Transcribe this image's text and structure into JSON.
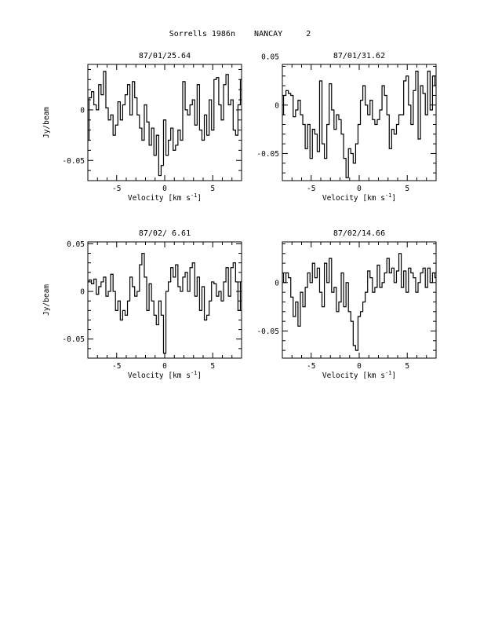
{
  "page": {
    "title": "Sorrells 1986n    NANCAY     2"
  },
  "chart_data": [
    {
      "type": "line",
      "step": true,
      "title": "87/01/25.64",
      "xlabel": "Velocity [km s",
      "xlabel_sup": "-1",
      "xlabel_end": "]",
      "ylabel": "Jy/beam",
      "xlim": [
        -8,
        8
      ],
      "ylim": [
        -0.07,
        0.045
      ],
      "xticks": [
        -5,
        0,
        5
      ],
      "xtick_labels": [
        "-5",
        "0",
        "5"
      ],
      "yticks": [
        0,
        -0.05
      ],
      "ytick_labels": [
        "0",
        "-0.05"
      ],
      "ytick_side": "left",
      "series": [
        {
          "x": [
            -8,
            -7.75,
            -7.5,
            -7.25,
            -7,
            -6.75,
            -6.5,
            -6.25,
            -6,
            -5.75,
            -5.5,
            -5.25,
            -5,
            -4.75,
            -4.5,
            -4.25,
            -4,
            -3.75,
            -3.5,
            -3.25,
            -3,
            -2.75,
            -2.5,
            -2.25,
            -2,
            -1.75,
            -1.5,
            -1.25,
            -1,
            -0.75,
            -0.5,
            -0.25,
            0,
            0.25,
            0.5,
            0.75,
            1,
            1.25,
            1.5,
            1.75,
            2,
            2.25,
            2.5,
            2.75,
            3,
            3.25,
            3.5,
            3.75,
            4,
            4.25,
            4.5,
            4.75,
            5,
            5.25,
            5.5,
            5.75,
            6,
            6.25,
            6.5,
            6.75,
            7,
            7.25,
            7.5,
            7.75,
            8
          ],
          "y": [
            -0.03,
            0.012,
            0.018,
            0.005,
            0.0,
            0.025,
            0.015,
            0.038,
            0.002,
            -0.01,
            -0.005,
            -0.025,
            -0.015,
            0.008,
            -0.01,
            0.005,
            0.015,
            0.025,
            -0.005,
            0.028,
            0.012,
            -0.005,
            -0.018,
            -0.03,
            0.005,
            -0.012,
            -0.035,
            -0.018,
            -0.045,
            -0.025,
            -0.065,
            -0.055,
            -0.01,
            -0.045,
            -0.03,
            -0.018,
            -0.04,
            -0.035,
            -0.02,
            -0.03,
            0.028,
            0.0,
            -0.005,
            0.005,
            0.01,
            -0.015,
            0.025,
            -0.02,
            -0.03,
            -0.005,
            -0.025,
            0.01,
            -0.02,
            0.03,
            0.032,
            0.005,
            -0.01,
            0.025,
            0.035,
            0.005,
            0.01,
            -0.02,
            -0.025,
            0.005,
            0.03
          ]
        }
      ]
    },
    {
      "type": "line",
      "step": true,
      "title": "87/01/31.62",
      "xlabel": "Velocity [km s",
      "xlabel_sup": "-1",
      "xlabel_end": "]",
      "ylabel": "",
      "xlim": [
        -8,
        8
      ],
      "ylim": [
        -0.078,
        0.042
      ],
      "xticks": [
        -5,
        0,
        5
      ],
      "xtick_labels": [
        "-5",
        "0",
        "5"
      ],
      "yticks": [
        0.05,
        0,
        -0.05
      ],
      "ytick_labels": [
        "0.05",
        "0",
        "-0.05"
      ],
      "ytick_side": "left",
      "series": [
        {
          "x": [
            -8,
            -7.75,
            -7.5,
            -7.25,
            -7,
            -6.75,
            -6.5,
            -6.25,
            -6,
            -5.75,
            -5.5,
            -5.25,
            -5,
            -4.75,
            -4.5,
            -4.25,
            -4,
            -3.75,
            -3.5,
            -3.25,
            -3,
            -2.75,
            -2.5,
            -2.25,
            -2,
            -1.75,
            -1.5,
            -1.25,
            -1,
            -0.75,
            -0.5,
            -0.25,
            0,
            0.25,
            0.5,
            0.75,
            1,
            1.25,
            1.5,
            1.75,
            2,
            2.25,
            2.5,
            2.75,
            3,
            3.25,
            3.5,
            3.75,
            4,
            4.25,
            4.5,
            4.75,
            5,
            5.25,
            5.5,
            5.75,
            6,
            6.25,
            6.5,
            6.75,
            7,
            7.25,
            7.5,
            7.75,
            8
          ],
          "y": [
            -0.01,
            0.01,
            0.015,
            0.012,
            0.01,
            -0.012,
            -0.005,
            0.005,
            -0.01,
            -0.02,
            -0.045,
            -0.02,
            -0.055,
            -0.025,
            -0.03,
            -0.048,
            0.025,
            -0.04,
            -0.055,
            -0.02,
            0.022,
            -0.005,
            -0.025,
            -0.01,
            -0.015,
            -0.03,
            -0.055,
            -0.075,
            -0.045,
            -0.05,
            -0.06,
            -0.04,
            -0.02,
            0.005,
            0.02,
            0.0,
            -0.01,
            0.005,
            -0.015,
            -0.02,
            -0.015,
            -0.005,
            0.02,
            0.01,
            -0.01,
            -0.045,
            -0.025,
            -0.03,
            -0.02,
            -0.01,
            -0.01,
            0.025,
            0.03,
            0.0,
            -0.02,
            0.015,
            0.035,
            -0.035,
            0.02,
            0.012,
            -0.01,
            0.035,
            -0.005,
            0.03,
            0.02
          ]
        }
      ]
    },
    {
      "type": "line",
      "step": true,
      "title": "87/02/ 6.61",
      "xlabel": "Velocity [km s",
      "xlabel_sup": "-1",
      "xlabel_end": "]",
      "ylabel": "Jy/beam",
      "xlim": [
        -8,
        8
      ],
      "ylim": [
        -0.07,
        0.052
      ],
      "xticks": [
        -5,
        0,
        5
      ],
      "xtick_labels": [
        "-5",
        "0",
        "5"
      ],
      "yticks": [
        0.05,
        0,
        -0.05
      ],
      "ytick_labels": [
        "0.05",
        "0",
        "-0.05"
      ],
      "ytick_side": "left",
      "series": [
        {
          "x": [
            -8,
            -7.75,
            -7.5,
            -7.25,
            -7,
            -6.75,
            -6.5,
            -6.25,
            -6,
            -5.75,
            -5.5,
            -5.25,
            -5,
            -4.75,
            -4.5,
            -4.25,
            -4,
            -3.75,
            -3.5,
            -3.25,
            -3,
            -2.75,
            -2.5,
            -2.25,
            -2,
            -1.75,
            -1.5,
            -1.25,
            -1,
            -0.75,
            -0.5,
            -0.25,
            0,
            0.25,
            0.5,
            0.75,
            1,
            1.25,
            1.5,
            1.75,
            2,
            2.25,
            2.5,
            2.75,
            3,
            3.25,
            3.5,
            3.75,
            4,
            4.25,
            4.5,
            4.75,
            5,
            5.25,
            5.5,
            5.75,
            6,
            6.25,
            6.5,
            6.75,
            7,
            7.25,
            7.5,
            7.75,
            8
          ],
          "y": [
            0.01,
            0.012,
            0.008,
            0.013,
            -0.003,
            0.005,
            0.01,
            0.015,
            -0.005,
            0.0,
            0.018,
            0.0,
            -0.02,
            -0.01,
            -0.03,
            -0.02,
            -0.025,
            -0.01,
            0.015,
            0.005,
            -0.005,
            0.0,
            0.028,
            0.04,
            0.015,
            -0.02,
            0.008,
            -0.01,
            -0.025,
            -0.035,
            -0.01,
            -0.025,
            -0.065,
            0.0,
            0.01,
            0.025,
            0.015,
            0.028,
            0.005,
            0.0,
            0.015,
            0.02,
            0.0,
            0.025,
            0.03,
            -0.005,
            0.015,
            -0.02,
            0.005,
            -0.03,
            -0.025,
            -0.01,
            0.01,
            0.008,
            -0.005,
            0.0,
            -0.01,
            0.01,
            0.025,
            -0.005,
            0.025,
            0.03,
            0.01,
            -0.02,
            0.01
          ]
        }
      ]
    },
    {
      "type": "line",
      "step": true,
      "title": "87/02/14.66",
      "xlabel": "Velocity [km s",
      "xlabel_sup": "-1",
      "xlabel_end": "]",
      "ylabel": "",
      "xlim": [
        -8,
        8
      ],
      "ylim": [
        -0.078,
        0.042
      ],
      "xticks": [
        -5,
        0,
        5
      ],
      "xtick_labels": [
        "-5",
        "0",
        "5"
      ],
      "yticks": [
        0,
        -0.05
      ],
      "ytick_labels": [
        "0",
        "-0.05"
      ],
      "ytick_side": "left",
      "series": [
        {
          "x": [
            -8,
            -7.75,
            -7.5,
            -7.25,
            -7,
            -6.75,
            -6.5,
            -6.25,
            -6,
            -5.75,
            -5.5,
            -5.25,
            -5,
            -4.75,
            -4.5,
            -4.25,
            -4,
            -3.75,
            -3.5,
            -3.25,
            -3,
            -2.75,
            -2.5,
            -2.25,
            -2,
            -1.75,
            -1.5,
            -1.25,
            -1,
            -0.75,
            -0.5,
            -0.25,
            0,
            0.25,
            0.5,
            0.75,
            1,
            1.25,
            1.5,
            1.75,
            2,
            2.25,
            2.5,
            2.75,
            3,
            3.25,
            3.5,
            3.75,
            4,
            4.25,
            4.5,
            4.75,
            5,
            5.25,
            5.5,
            5.75,
            6,
            6.25,
            6.5,
            6.75,
            7,
            7.25,
            7.5,
            7.75,
            8
          ],
          "y": [
            0.01,
            0.0,
            0.01,
            0.005,
            -0.015,
            -0.035,
            -0.02,
            -0.045,
            -0.01,
            -0.025,
            -0.005,
            0.01,
            0.0,
            0.02,
            0.005,
            0.015,
            -0.01,
            -0.025,
            0.02,
            0.0,
            0.025,
            -0.01,
            -0.005,
            -0.03,
            -0.02,
            0.01,
            -0.025,
            0.0,
            -0.03,
            -0.04,
            -0.065,
            -0.07,
            -0.035,
            -0.03,
            -0.02,
            -0.01,
            0.012,
            0.005,
            -0.01,
            -0.005,
            0.018,
            -0.005,
            0.0,
            0.01,
            0.025,
            0.01,
            0.015,
            0.0,
            0.012,
            0.03,
            -0.005,
            0.012,
            -0.01,
            0.015,
            0.01,
            0.005,
            -0.01,
            0.0,
            0.01,
            0.015,
            -0.005,
            0.015,
            0.0,
            0.01,
            0.005
          ]
        }
      ]
    }
  ]
}
